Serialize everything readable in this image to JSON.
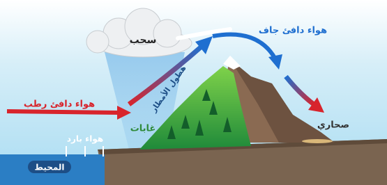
{
  "labels": {
    "cloud": "سحب",
    "dry_warm_air": "هواء دافئ جاف",
    "precipitation": "هطول الأمطار",
    "moist_warm_air": "هواء دافئ رطب",
    "forests": "غابات",
    "deserts": "صحاري",
    "cold_air": "هواء بارد",
    "ocean": "المحيط"
  }
}
